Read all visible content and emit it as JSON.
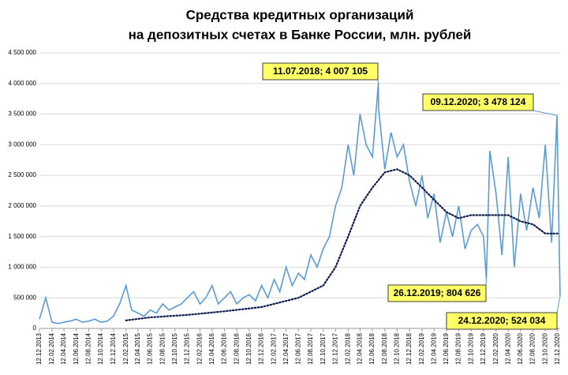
{
  "chart_data": {
    "type": "line",
    "title": [
      "Средства кредитных организаций",
      "на депозитных счетах в Банке России, млн. рублей"
    ],
    "annotations": [
      "11.07.2018; 4 007 105",
      "09.12.2020; 3 478 124",
      "26.12.2019; 804 626",
      "24.12.2020; 524 034"
    ],
    "xlim": [
      "12.12.2013",
      "24.12.2020"
    ],
    "xticks": [
      "12.12.2013",
      "12.02.2014",
      "12.04.2014",
      "12.06.2014",
      "12.08.2014",
      "12.10.2014",
      "12.12.2014",
      "12.02.2015",
      "12.04.2015",
      "12.06.2015",
      "12.08.2015",
      "12.10.2015",
      "12.12.2015",
      "12.02.2016",
      "12.04.2016",
      "12.06.2016",
      "12.08.2016",
      "12.10.2016",
      "12.12.2016",
      "12.02.2017",
      "12.04.2017",
      "12.06.2017",
      "12.08.2017",
      "12.10.2017",
      "12.12.2017",
      "12.02.2018",
      "12.04.2018",
      "12.06.2018",
      "12.08.2018",
      "12.10.2018",
      "12.12.2018",
      "12.02.2019",
      "12.04.2019",
      "12.06.2019",
      "12.08.2019",
      "12.10.2019",
      "12.12.2019",
      "12.02.2020",
      "12.04.2020",
      "12.06.2020",
      "12.08.2020",
      "12.10.2020",
      "12.12.2020"
    ],
    "ylim": [
      0,
      4500000
    ],
    "yticks": [
      0,
      {
        "value": 500000,
        "label": "500 000"
      },
      {
        "value": 1000000,
        "label": "1 000 000"
      },
      {
        "value": 1500000,
        "label": "1 500 000"
      },
      {
        "value": 2000000,
        "label": "2 000 000"
      },
      {
        "value": 2500000,
        "label": "2 500 000"
      },
      {
        "value": 3000000,
        "label": "3 000 000"
      },
      {
        "value": 3500000,
        "label": "3 500 000"
      },
      {
        "value": 4000000,
        "label": "4 000 000"
      },
      {
        "value": 4500000,
        "label": "4 500 000"
      }
    ],
    "series": [
      {
        "color": "#5b9bd5",
        "style": "solid",
        "x": [
          "12.12.2013",
          "12.01.2014",
          "12.02.2014",
          "12.03.2014",
          "12.04.2014",
          "12.05.2014",
          "12.06.2014",
          "12.07.2014",
          "12.08.2014",
          "12.09.2014",
          "12.10.2014",
          "12.11.2014",
          "12.12.2014",
          "12.01.2015",
          "12.02.2015",
          "12.03.2015",
          "12.04.2015",
          "12.05.2015",
          "12.06.2015",
          "12.07.2015",
          "12.08.2015",
          "12.09.2015",
          "12.10.2015",
          "12.11.2015",
          "12.12.2015",
          "12.01.2016",
          "12.02.2016",
          "12.03.2016",
          "12.04.2016",
          "12.05.2016",
          "12.06.2016",
          "12.07.2016",
          "12.08.2016",
          "12.09.2016",
          "12.10.2016",
          "12.11.2016",
          "12.12.2016",
          "12.01.2017",
          "12.02.2017",
          "12.03.2017",
          "12.04.2017",
          "12.05.2017",
          "12.06.2017",
          "12.07.2017",
          "12.08.2017",
          "12.09.2017",
          "12.10.2017",
          "12.11.2017",
          "12.12.2017",
          "12.01.2018",
          "12.02.2018",
          "12.03.2018",
          "12.04.2018",
          "12.05.2018",
          "12.06.2018",
          "11.07.2018",
          "12.07.2018",
          "12.08.2018",
          "12.09.2018",
          "12.10.2018",
          "12.11.2018",
          "12.12.2018",
          "12.01.2019",
          "12.02.2019",
          "12.03.2019",
          "12.04.2019",
          "12.05.2019",
          "12.06.2019",
          "12.07.2019",
          "12.08.2019",
          "12.09.2019",
          "12.10.2019",
          "12.11.2019",
          "12.12.2019",
          "26.12.2019",
          "12.01.2020",
          "12.02.2020",
          "12.03.2020",
          "12.04.2020",
          "12.05.2020",
          "12.06.2020",
          "12.07.2020",
          "12.08.2020",
          "12.09.2020",
          "12.10.2020",
          "12.11.2020",
          "09.12.2020",
          "12.12.2020",
          "24.12.2020"
        ],
        "values": [
          150000,
          500000,
          100000,
          80000,
          100000,
          120000,
          150000,
          100000,
          120000,
          150000,
          100000,
          120000,
          200000,
          400000,
          700000,
          300000,
          250000,
          200000,
          300000,
          250000,
          400000,
          300000,
          350000,
          400000,
          500000,
          600000,
          400000,
          500000,
          700000,
          400000,
          500000,
          600000,
          400000,
          500000,
          550000,
          450000,
          700000,
          500000,
          800000,
          600000,
          1000000,
          700000,
          900000,
          800000,
          1200000,
          1000000,
          1300000,
          1500000,
          2000000,
          2300000,
          3000000,
          2500000,
          3500000,
          3000000,
          2800000,
          4007105,
          3600000,
          2600000,
          3200000,
          2800000,
          3000000,
          2400000,
          2000000,
          2500000,
          1800000,
          2200000,
          1400000,
          1900000,
          1500000,
          2000000,
          1300000,
          1600000,
          1700000,
          1500000,
          804626,
          2900000,
          2200000,
          1200000,
          2800000,
          1000000,
          2200000,
          1600000,
          2300000,
          1800000,
          3000000,
          1400000,
          3478124,
          2800000,
          524034
        ]
      },
      {
        "color": "#0d1b4f",
        "style": "dotted",
        "x": [
          "12.02.2015",
          "12.06.2015",
          "12.12.2015",
          "12.06.2016",
          "12.12.2016",
          "12.06.2017",
          "12.10.2017",
          "12.12.2017",
          "12.02.2018",
          "12.04.2018",
          "12.06.2018",
          "12.08.2018",
          "12.10.2018",
          "12.12.2018",
          "12.02.2019",
          "12.04.2019",
          "12.06.2019",
          "12.08.2019",
          "12.10.2019",
          "12.12.2019",
          "12.02.2020",
          "12.04.2020",
          "12.06.2020",
          "12.08.2020",
          "12.10.2020",
          "12.12.2020"
        ],
        "values": [
          130000,
          180000,
          220000,
          280000,
          350000,
          500000,
          700000,
          1000000,
          1500000,
          2000000,
          2300000,
          2550000,
          2600000,
          2500000,
          2300000,
          2100000,
          1900000,
          1800000,
          1850000,
          1850000,
          1850000,
          1850000,
          1750000,
          1700000,
          1550000,
          1550000
        ]
      }
    ]
  }
}
